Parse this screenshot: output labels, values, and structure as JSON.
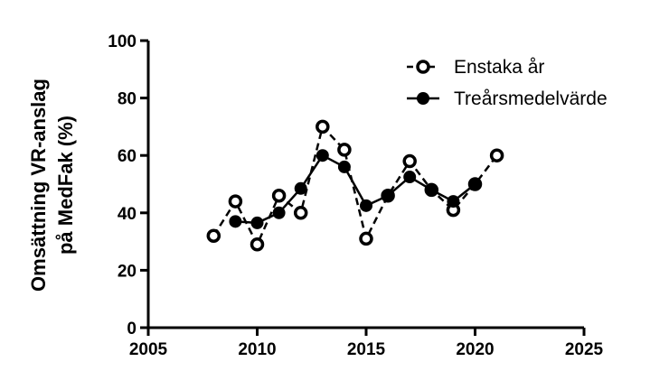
{
  "chart_data": {
    "type": "line",
    "title": "",
    "xlabel": "",
    "ylabel_lines": [
      "Omsättning VR-anslag",
      "på MedFak (%)"
    ],
    "xlim": [
      2005,
      2025
    ],
    "ylim": [
      0,
      100
    ],
    "x_ticks": [
      2005,
      2010,
      2015,
      2020,
      2025
    ],
    "y_ticks": [
      0,
      20,
      40,
      60,
      80,
      100
    ],
    "grid": false,
    "legend_position": "top-right",
    "series": [
      {
        "name": "Enstaka år",
        "style": "dashed",
        "marker": "open-circle",
        "x": [
          2008,
          2009,
          2010,
          2011,
          2012,
          2013,
          2014,
          2015,
          2016,
          2017,
          2018,
          2019,
          2020,
          2021
        ],
        "values": [
          32,
          44,
          29,
          46,
          40,
          70,
          62,
          31,
          46,
          58,
          48,
          41,
          50,
          60
        ]
      },
      {
        "name": "Treårsmedelvärde",
        "style": "solid",
        "marker": "filled-circle",
        "x": [
          2009,
          2010,
          2011,
          2012,
          2013,
          2014,
          2015,
          2016,
          2017,
          2018,
          2019,
          2020
        ],
        "values": [
          37,
          36.5,
          40,
          48.5,
          60,
          56,
          42.5,
          46,
          52.5,
          48,
          44,
          50
        ]
      }
    ]
  }
}
